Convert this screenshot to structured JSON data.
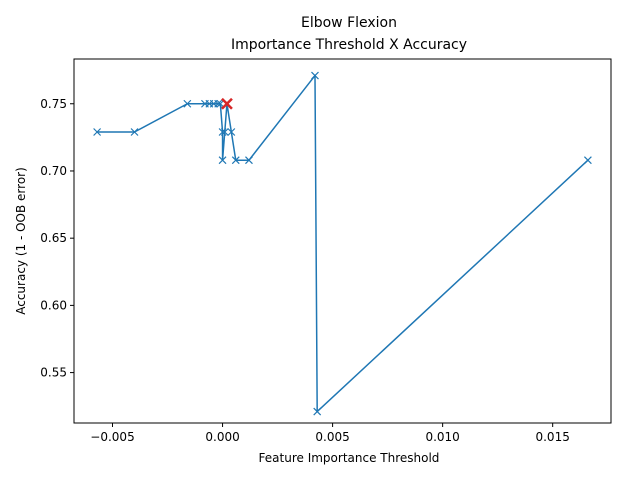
{
  "chart_data": {
    "type": "line",
    "title": "Elbow Flexion",
    "subtitle": "Importance Threshold X Accuracy",
    "xlabel": "Feature Importance Threshold",
    "ylabel": "Accuracy (1 - OOB error)",
    "xlim": [
      -0.00675,
      0.01765
    ],
    "ylim": [
      0.5125,
      0.7833
    ],
    "xticks": [
      -0.005,
      0.0,
      0.005,
      0.01,
      0.015
    ],
    "xtick_labels": [
      "−0.005",
      "0.000",
      "0.005",
      "0.010",
      "0.015"
    ],
    "yticks": [
      0.55,
      0.6,
      0.65,
      0.7,
      0.75
    ],
    "ytick_labels": [
      "0.55",
      "0.60",
      "0.65",
      "0.70",
      "0.75"
    ],
    "grid": false,
    "line_color": "#1f77b4",
    "highlight_color": "#d62728",
    "series": [
      {
        "marker": "x",
        "points": [
          [
            -0.0057,
            0.729
          ],
          [
            -0.004,
            0.729
          ],
          [
            -0.0016,
            0.75
          ],
          [
            -0.0008,
            0.75
          ],
          [
            -0.0006,
            0.75
          ],
          [
            -0.0004,
            0.75
          ],
          [
            -0.0002,
            0.75
          ],
          [
            -0.0001,
            0.75
          ],
          [
            0.0,
            0.729
          ],
          [
            0.0,
            0.708
          ],
          [
            0.0001,
            0.729
          ],
          [
            0.0002,
            0.75
          ],
          [
            0.0004,
            0.729
          ],
          [
            0.0006,
            0.708
          ],
          [
            0.0012,
            0.708
          ],
          [
            0.0042,
            0.771
          ],
          [
            0.0043,
            0.521
          ],
          [
            0.0166,
            0.708
          ]
        ]
      }
    ],
    "highlight": [
      0.0002,
      0.75
    ]
  }
}
